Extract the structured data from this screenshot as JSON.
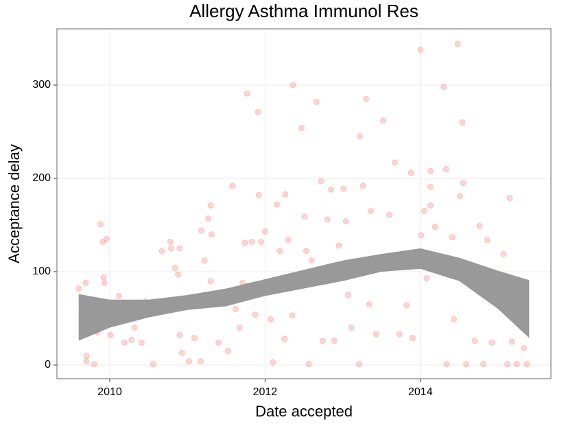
{
  "chart_data": {
    "type": "scatter",
    "title": "Allergy Asthma Immunol Res",
    "x_label": "Date accepted",
    "y_label": "Acceptance delay",
    "xlim": [
      2009.32,
      2015.68
    ],
    "ylim": [
      -14.7,
      360.3
    ],
    "xticks": [
      2010,
      2012,
      2014
    ],
    "yticks": [
      0,
      100,
      200,
      300
    ],
    "grid": true,
    "color": "#f8766d",
    "x": [
      2009.6,
      2009.69,
      2009.69,
      2009.7,
      2009.7,
      2009.8,
      2009.88,
      2009.91,
      2009.96,
      2009.92,
      2009.93,
      2009.84,
      2010.01,
      2010.09,
      2010.12,
      2010.19,
      2010.23,
      2010.28,
      2010.32,
      2010.36,
      2010.41,
      2010.46,
      2010.56,
      2010.67,
      2010.78,
      2010.79,
      2010.84,
      2010.88,
      2010.9,
      2010.9,
      2010.93,
      2011.02,
      2011.09,
      2011.17,
      2011.18,
      2011.22,
      2011.27,
      2011.3,
      2011.3,
      2011.31,
      2011.4,
      2011.5,
      2011.52,
      2011.58,
      2011.62,
      2011.67,
      2011.71,
      2011.74,
      2011.77,
      2011.78,
      2011.83,
      2011.87,
      2011.92,
      2011.91,
      2011.95,
      2012,
      2012.03,
      2012.07,
      2012.1,
      2012.15,
      2012.19,
      2012.25,
      2012.26,
      2012.3,
      2012.35,
      2012.36,
      2012.47,
      2012.51,
      2012.53,
      2012.56,
      2012.6,
      2012.66,
      2012.72,
      2012.74,
      2012.8,
      2012.85,
      2012.86,
      2012.89,
      2012.95,
      2013.01,
      2013.04,
      2013.07,
      2013.11,
      2013.21,
      2013.22,
      2013.26,
      2013.3,
      2013.34,
      2013.36,
      2013.43,
      2013.52,
      2013.54,
      2013.6,
      2013.67,
      2013.73,
      2013.76,
      2013.82,
      2013.88,
      2013.9,
      2014,
      2014.01,
      2014.05,
      2014.08,
      2014.13,
      2014.13,
      2014.13,
      2014.19,
      2014.3,
      2014.33,
      2014.34,
      2014.41,
      2014.43,
      2014.48,
      2014.51,
      2014.54,
      2014.55,
      2014.59,
      2014.65,
      2014.7,
      2014.76,
      2014.81,
      2014.85,
      2014.86,
      2014.92,
      2014.99,
      2015.07,
      2015.12,
      2015.15,
      2015.18,
      2015.24,
      2015.33,
      2015.37
    ],
    "values": [
      82,
      88,
      70,
      10,
      4,
      1,
      151,
      132,
      135,
      94,
      88,
      35,
      32,
      63,
      74,
      24,
      52,
      27,
      40,
      57,
      24,
      68,
      1,
      122,
      132,
      125,
      104,
      97,
      125,
      32,
      13,
      4,
      29,
      4,
      144,
      112,
      157,
      171,
      90,
      140,
      24,
      68,
      15,
      192,
      60,
      40,
      88,
      131,
      291,
      85,
      132,
      54,
      182,
      271,
      132,
      143,
      84,
      49,
      3,
      172,
      122,
      28,
      183,
      134,
      53,
      300,
      254,
      159,
      122,
      1,
      112,
      282,
      197,
      26,
      156,
      188,
      106,
      26,
      128,
      189,
      154,
      75,
      40,
      1,
      245,
      192,
      285,
      65,
      165,
      33,
      262,
      106,
      161,
      217,
      33,
      114,
      64,
      206,
      29,
      338,
      139,
      165,
      93,
      191,
      208,
      171,
      148,
      298,
      210,
      1,
      137,
      49,
      344,
      181,
      260,
      195,
      1,
      104,
      26,
      149,
      1,
      81,
      134,
      24,
      72,
      119,
      1,
      179,
      25,
      1,
      18,
      1
    ],
    "band": {
      "color": "#999999",
      "x": [
        2009.6,
        2010,
        2010.5,
        2011,
        2011.5,
        2012,
        2012.5,
        2013,
        2013.5,
        2014,
        2014.5,
        2015,
        2015.4
      ],
      "upper": [
        76,
        70,
        70,
        75,
        82,
        92,
        102,
        112,
        119,
        125,
        115,
        101,
        91
      ],
      "lower": [
        26,
        40,
        51,
        59,
        63,
        74,
        82,
        90,
        100,
        103,
        90,
        60,
        29
      ]
    }
  }
}
